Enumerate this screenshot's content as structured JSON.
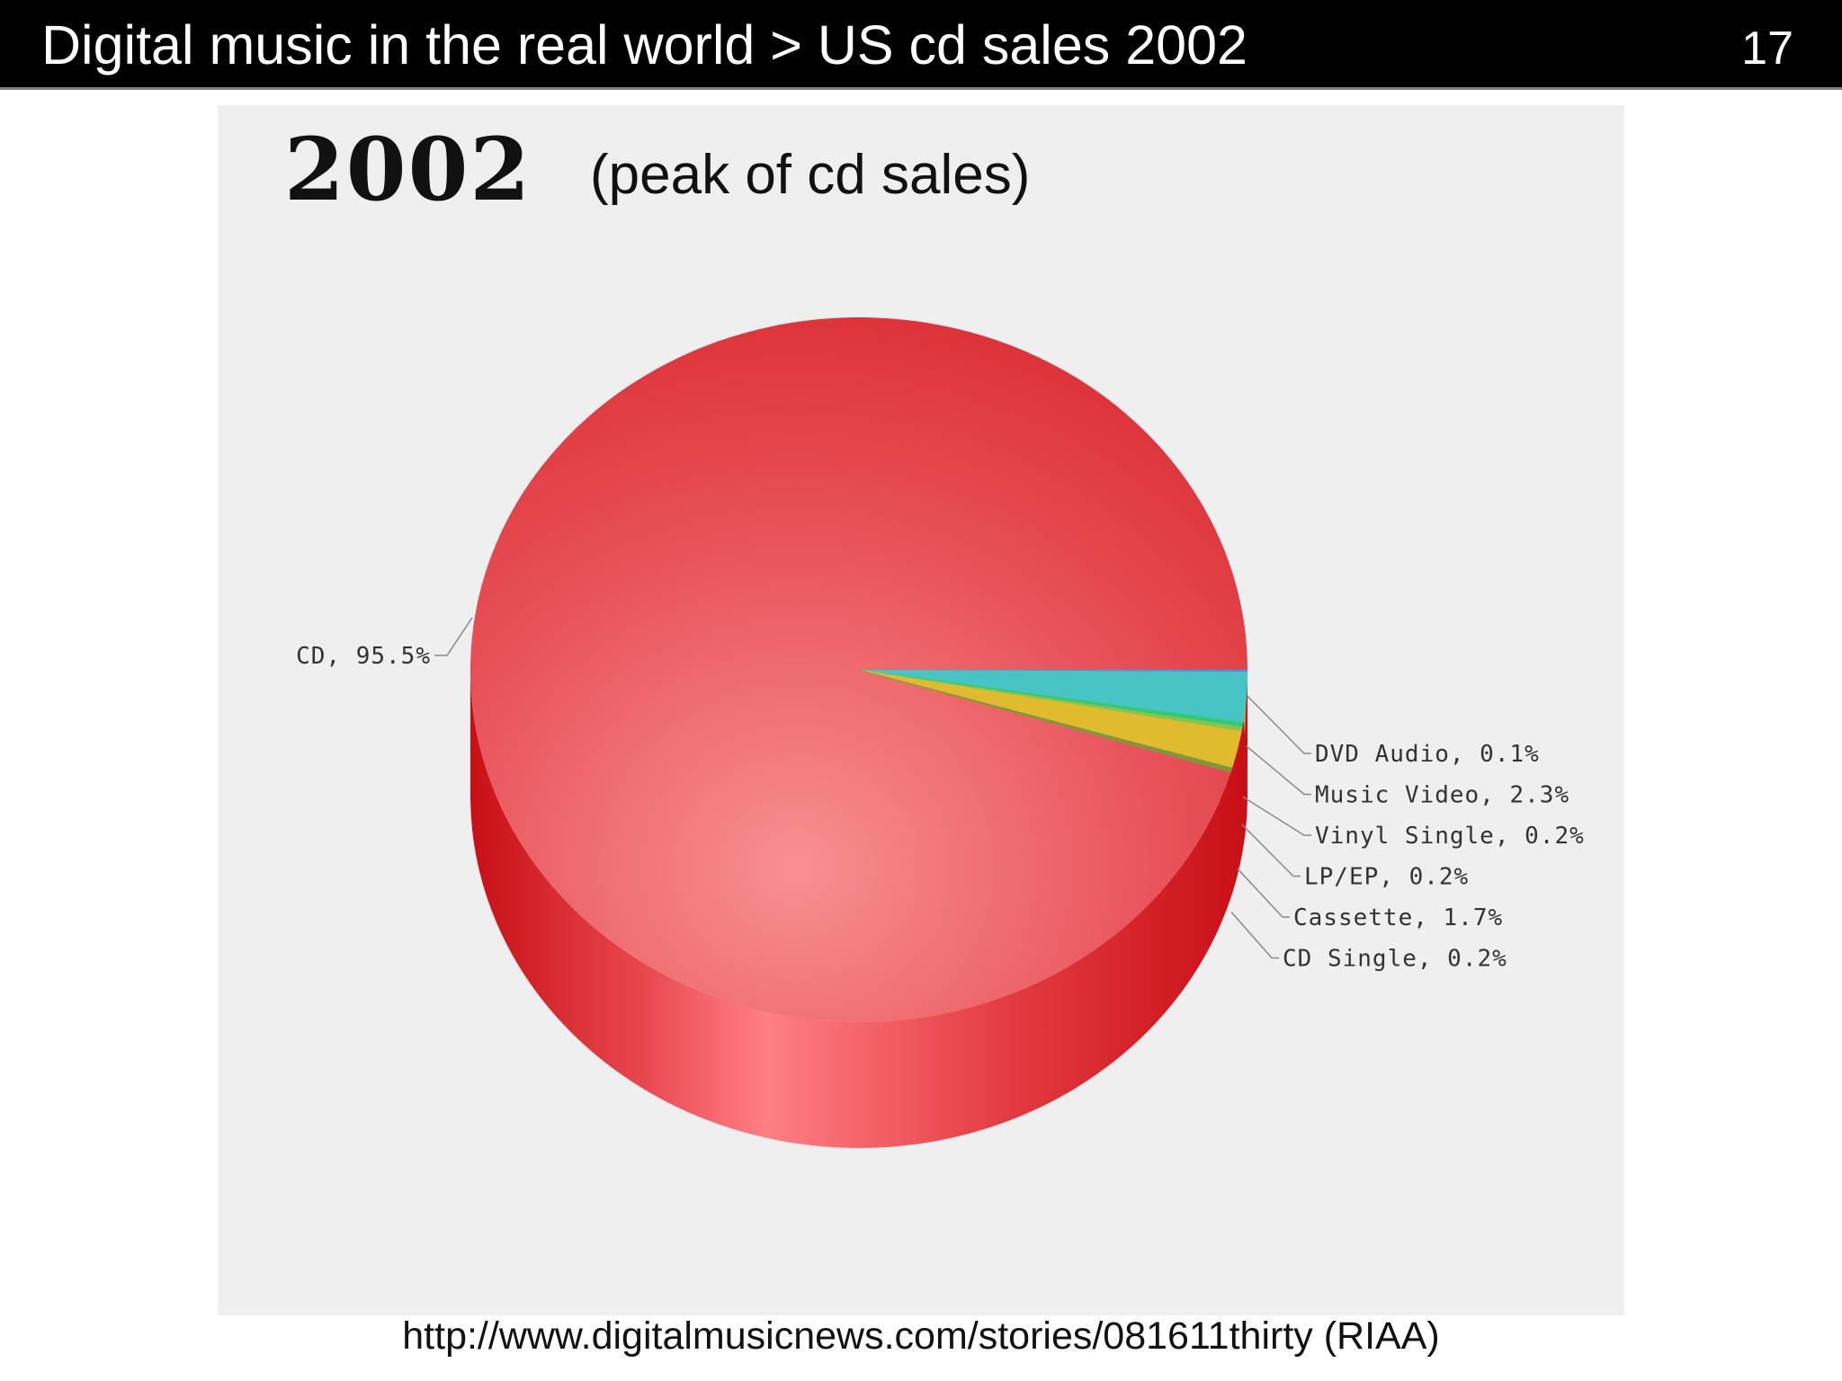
{
  "header": {
    "title": "Digital music in the real world > US cd sales 2002",
    "page_number": "17"
  },
  "figure": {
    "year": "2002",
    "subtitle": "(peak of cd sales)",
    "source": "http://www.digitalmusicnews.com/stories/081611thirty (RIAA)"
  },
  "chart_data": {
    "type": "pie",
    "style": "3d",
    "title": "2002",
    "subtitle": "(peak of cd sales)",
    "slices": [
      {
        "label": "CD, 95.5%",
        "name": "CD",
        "value": 95.5,
        "color": "#e0333b",
        "side": "left"
      },
      {
        "label": "DVD Audio, 0.1%",
        "name": "DVD Audio",
        "value": 0.1,
        "color": "#4a90e2",
        "side": "right"
      },
      {
        "label": "Music Video, 2.3%",
        "name": "Music Video",
        "value": 2.3,
        "color": "#48c4c4",
        "side": "right"
      },
      {
        "label": "Vinyl Single, 0.2%",
        "name": "Vinyl Single",
        "value": 0.2,
        "color": "#2ecc71",
        "side": "right"
      },
      {
        "label": "LP/EP, 0.2%",
        "name": "LP/EP",
        "value": 0.2,
        "color": "#8bc34a",
        "side": "right"
      },
      {
        "label": "Cassette, 1.7%",
        "name": "Cassette",
        "value": 1.7,
        "color": "#e0bb2e",
        "side": "right"
      },
      {
        "label": "CD Single, 0.2%",
        "name": "CD Single",
        "value": 0.2,
        "color": "#7a9a3a",
        "side": "right"
      }
    ]
  }
}
